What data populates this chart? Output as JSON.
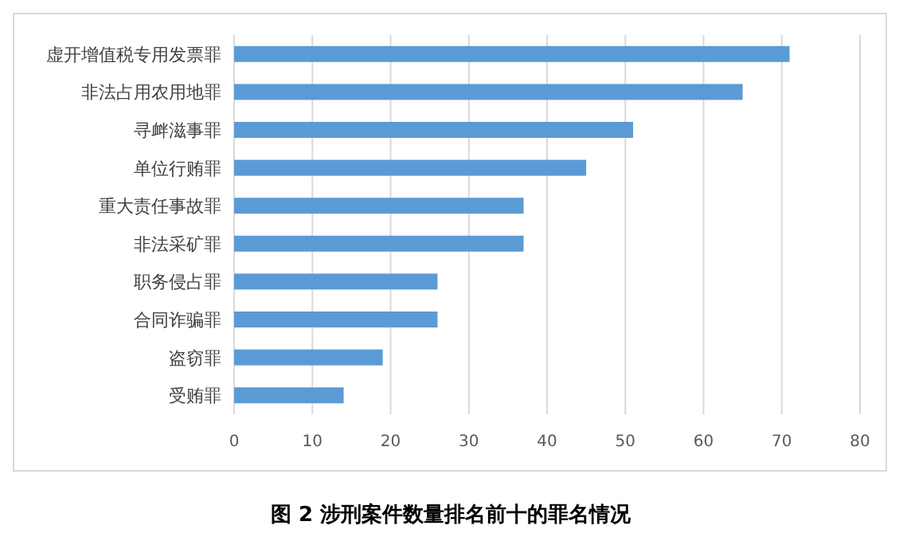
{
  "chart_data": {
    "type": "bar",
    "orientation": "horizontal",
    "title": "图 2  涉刑案件数量排名前十的罪名情况",
    "categories": [
      "虚开增值税专用发票罪",
      "非法占用农用地罪",
      "寻衅滋事罪",
      "单位行贿罪",
      "重大责任事故罪",
      "非法采矿罪",
      "职务侵占罪",
      "合同诈骗罪",
      "盗窃罪",
      "受贿罪"
    ],
    "values": [
      71,
      65,
      51,
      45,
      37,
      37,
      26,
      26,
      19,
      14
    ],
    "color": "#5b9bd5",
    "xlim": [
      0,
      80
    ],
    "xticks": [
      0,
      10,
      20,
      30,
      40,
      50,
      60,
      70,
      80
    ],
    "grid": "x"
  }
}
